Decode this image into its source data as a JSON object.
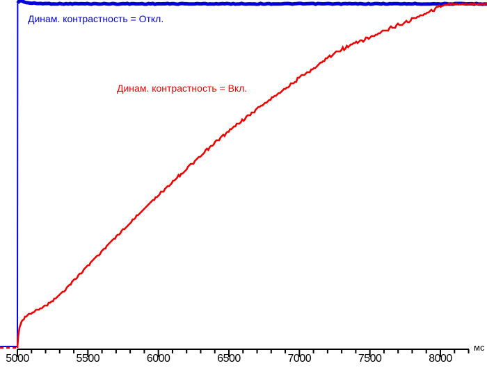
{
  "page": {
    "background": "#ffffff",
    "axis_color": "#000000"
  },
  "chart_data": {
    "type": "line",
    "title": "",
    "xlabel": "мс",
    "ylabel": "",
    "grid": false,
    "legend_position": "inline-annotations",
    "x_axis": {
      "range_ms": [
        5000,
        8200
      ],
      "major_tick_step_ms": 500,
      "minor_tick_step_ms": 100,
      "tick_values": [
        5000,
        5500,
        6000,
        6500,
        7000,
        7500,
        8000
      ],
      "tick_labels": [
        "5000",
        "5500",
        "6000",
        "6500",
        "7000",
        "7500",
        "8000"
      ]
    },
    "ylim": [
      0,
      103
    ],
    "y_axis_visible": false,
    "series": [
      {
        "name": "Динам. контрастность = Откл.",
        "color": "#0000dd",
        "style": "thick-flat",
        "points": [
          [
            4877,
            0.4
          ],
          [
            5000,
            0.4
          ],
          [
            5002,
            100.3
          ],
          [
            5012,
            100.9
          ],
          [
            5030,
            101.0
          ],
          [
            5050,
            100.6
          ],
          [
            5090,
            100.3
          ],
          [
            5150,
            100.2
          ],
          [
            5300,
            100.1
          ],
          [
            8330,
            100.1
          ]
        ]
      },
      {
        "name": "Динам. контрастность = Вкл.",
        "color": "#ee0000",
        "style": "noisy-ramp",
        "points": [
          [
            4877,
            0
          ],
          [
            5000,
            0
          ],
          [
            5005,
            3.0
          ],
          [
            5015,
            5.9
          ],
          [
            5030,
            7.7
          ],
          [
            5054,
            8.9
          ],
          [
            5089,
            9.9
          ],
          [
            5133,
            10.9
          ],
          [
            5183,
            11.9
          ],
          [
            5232,
            13.1
          ],
          [
            5281,
            14.7
          ],
          [
            5331,
            16.6
          ],
          [
            5370,
            18.4
          ],
          [
            5395,
            19.4
          ],
          [
            5567,
            26.9
          ],
          [
            5740,
            33.9
          ],
          [
            5913,
            41.0
          ],
          [
            6085,
            47.7
          ],
          [
            6258,
            54.3
          ],
          [
            6431,
            60.8
          ],
          [
            6604,
            66.5
          ],
          [
            6776,
            71.9
          ],
          [
            6949,
            77.0
          ],
          [
            7122,
            82.0
          ],
          [
            7196,
            84.2
          ],
          [
            7270,
            86.3
          ],
          [
            7393,
            88.5
          ],
          [
            7541,
            91.1
          ],
          [
            7689,
            93.7
          ],
          [
            7838,
            96.2
          ],
          [
            7936,
            98.2
          ],
          [
            8010,
            99.6
          ],
          [
            8059,
            100.0
          ],
          [
            8330,
            100.0
          ]
        ]
      }
    ]
  }
}
